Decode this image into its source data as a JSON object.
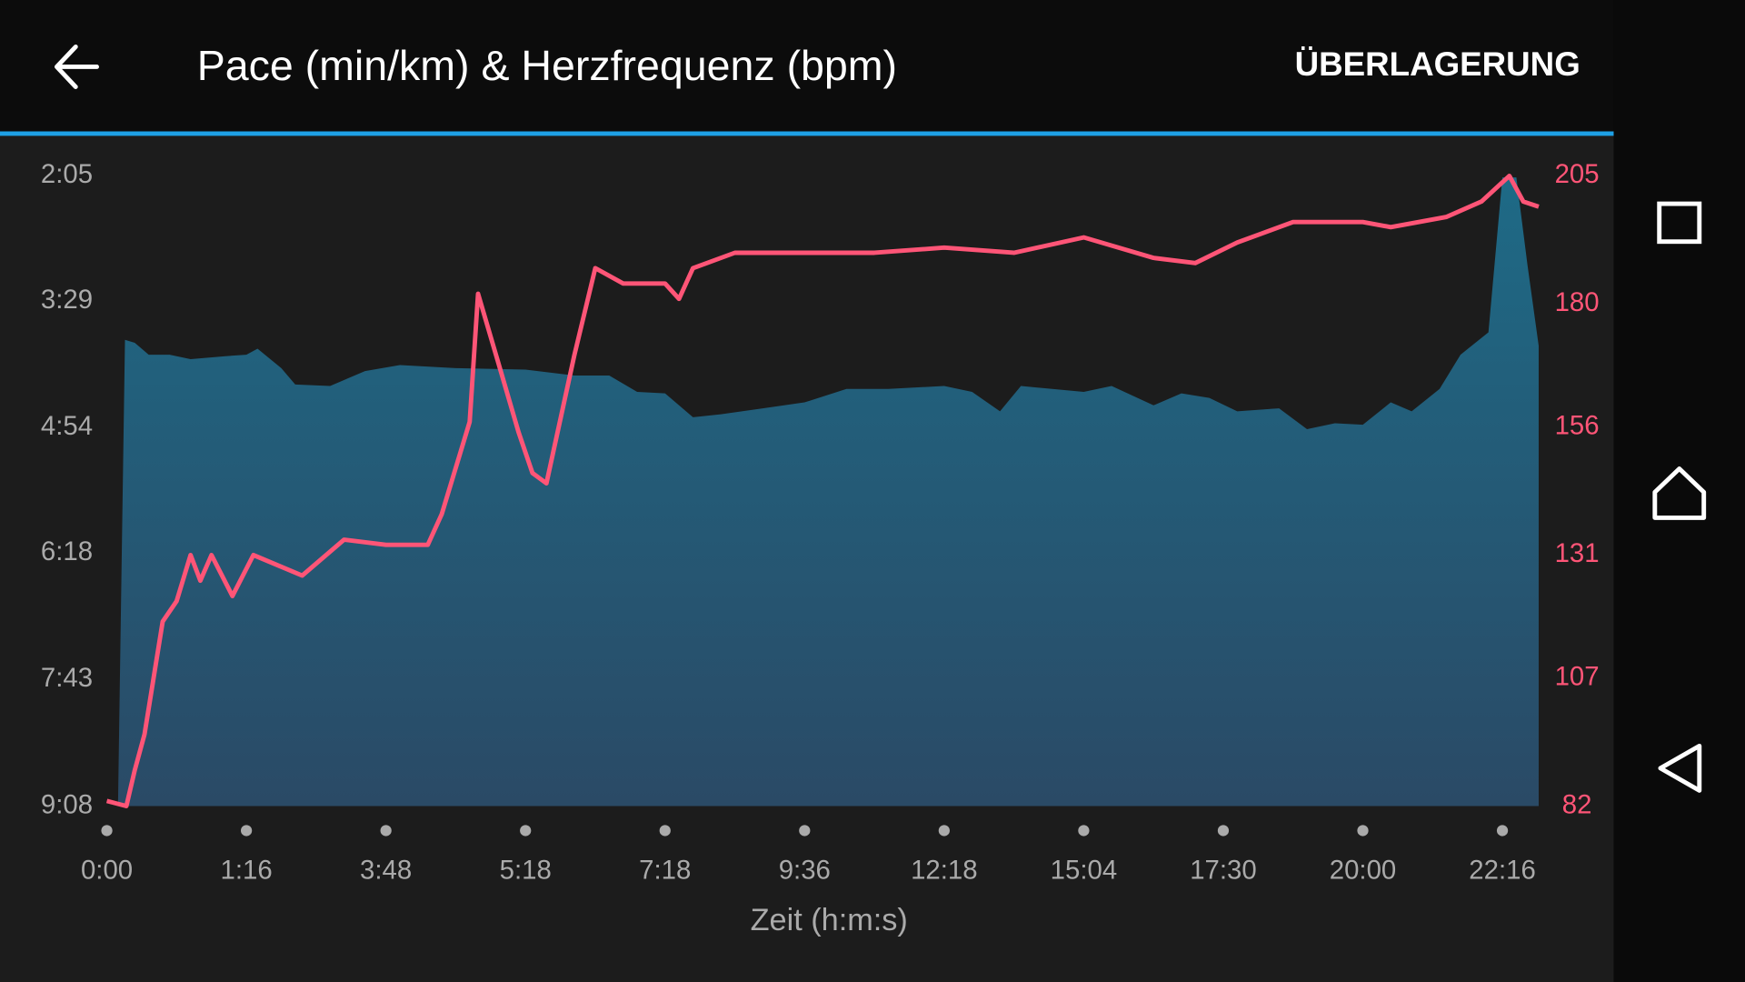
{
  "header": {
    "title": "Pace (min/km) & Herzfrequenz (bpm)",
    "action": "ÜBERLAGERUNG"
  },
  "chart_data": {
    "type": "combo",
    "xlabel": "Zeit (h:m:s)",
    "xlim": [
      0,
      10.26
    ],
    "xticks": [
      {
        "value": 0,
        "label": "0:00"
      },
      {
        "value": 1,
        "label": "1:16"
      },
      {
        "value": 2,
        "label": "3:48"
      },
      {
        "value": 3,
        "label": "5:18"
      },
      {
        "value": 4,
        "label": "7:18"
      },
      {
        "value": 5,
        "label": "9:36"
      },
      {
        "value": 6,
        "label": "12:18"
      },
      {
        "value": 7,
        "label": "15:04"
      },
      {
        "value": 8,
        "label": "17:30"
      },
      {
        "value": 9,
        "label": "20:00"
      },
      {
        "value": 10,
        "label": "22:16"
      }
    ],
    "ylim": [
      548,
      125
    ],
    "yticks": [
      {
        "value": 125,
        "label": "2:05"
      },
      {
        "value": 209,
        "label": "3:29"
      },
      {
        "value": 294,
        "label": "4:54"
      },
      {
        "value": 378,
        "label": "6:18"
      },
      {
        "value": 463,
        "label": "7:43"
      },
      {
        "value": 548,
        "label": "9:08"
      }
    ],
    "y2lim": [
      82,
      205
    ],
    "y2ticks": [
      82,
      107,
      131,
      156,
      180,
      205
    ],
    "series": [
      {
        "kind": "area",
        "color": "#1e6a86",
        "x": [
          0.08,
          0.13,
          0.2,
          0.3,
          0.45,
          0.6,
          0.85,
          1.0,
          1.08,
          1.25,
          1.35,
          1.6,
          1.85,
          2.1,
          2.5,
          3.0,
          3.35,
          3.6,
          3.8,
          4.0,
          4.2,
          4.4,
          4.7,
          5.0,
          5.3,
          5.6,
          6.0,
          6.2,
          6.4,
          6.55,
          7.0,
          7.2,
          7.5,
          7.7,
          7.9,
          8.1,
          8.4,
          8.6,
          8.8,
          9.0,
          9.2,
          9.35,
          9.55,
          9.7,
          9.9,
          10.0,
          10.1,
          10.18,
          10.26
        ],
        "values": [
          548,
          235,
          237,
          245,
          245,
          248,
          246,
          245,
          241,
          254,
          265,
          266,
          256,
          252,
          254,
          255,
          259,
          259,
          270,
          271,
          287,
          285,
          281,
          277,
          268,
          268,
          266,
          270,
          283,
          266,
          270,
          266,
          279,
          271,
          274,
          283,
          281,
          295,
          291,
          292,
          277,
          283,
          268,
          245,
          230,
          126,
          126,
          185,
          239
        ]
      },
      {
        "kind": "line",
        "color": "#ff5577",
        "axis": "y2",
        "x": [
          0.0,
          0.14,
          0.2,
          0.27,
          0.4,
          0.5,
          0.6,
          0.67,
          0.75,
          0.9,
          1.05,
          1.4,
          1.7,
          2.0,
          2.3,
          2.4,
          2.6,
          2.66,
          2.8,
          2.95,
          3.05,
          3.15,
          3.35,
          3.5,
          3.7,
          4.0,
          4.1,
          4.2,
          4.5,
          5.0,
          5.5,
          6.0,
          6.5,
          7.0,
          7.5,
          7.8,
          8.1,
          8.5,
          9.0,
          9.2,
          9.6,
          9.85,
          10.05,
          10.15,
          10.26
        ],
        "values": [
          83,
          82,
          89,
          96,
          118,
          122,
          131,
          126,
          131,
          123,
          131,
          127,
          134,
          133,
          133,
          139,
          157,
          182,
          169,
          155,
          147,
          145,
          170,
          187,
          184,
          184,
          181,
          187,
          190,
          190,
          190,
          191,
          190,
          193,
          189,
          188,
          192,
          196,
          196,
          195,
          197,
          200,
          205,
          200,
          199
        ]
      }
    ]
  }
}
